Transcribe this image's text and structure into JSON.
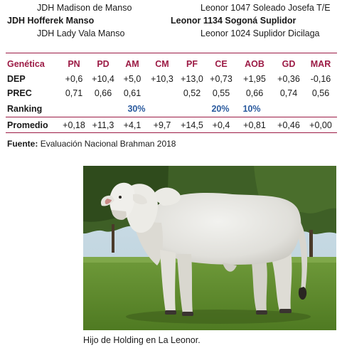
{
  "pedigree": {
    "rows": [
      {
        "left": "JDH Madison de Manso",
        "right": "Leonor 1047 Soleado Josefa T/E"
      },
      {
        "left": "JDH Hofferek Manso",
        "right": "Leonor 1134 Sogoná Suplidor"
      },
      {
        "left": "JDH Lady Vala Manso",
        "right": "Leonor 1024 Suplidor Dicilaga"
      }
    ]
  },
  "table": {
    "header_label": "Genética",
    "columns": [
      "PN",
      "PD",
      "AM",
      "CM",
      "PF",
      "CE",
      "AOB",
      "GD",
      "MAR"
    ],
    "rows": {
      "dep": {
        "label": "DEP",
        "values": [
          "+0,6",
          "+10,4",
          "+5,0",
          "+10,3",
          "+13,0",
          "+0,73",
          "+1,95",
          "+0,36",
          "-0,16"
        ]
      },
      "prec": {
        "label": "PREC",
        "values": [
          "0,71",
          "0,66",
          "0,61",
          "",
          "0,52",
          "0,55",
          "0,66",
          "0,74",
          "0,56"
        ]
      },
      "ranking": {
        "label": "Ranking",
        "values": [
          "",
          "",
          "30%",
          "",
          "",
          "20%",
          "10%",
          "",
          ""
        ]
      },
      "promedio": {
        "label": "Promedio",
        "values": [
          "+0,18",
          "+11,3",
          "+4,1",
          "+9,7",
          "+14,5",
          "+0,4",
          "+0,81",
          "+0,46",
          "+0,00"
        ]
      }
    }
  },
  "source": {
    "label": "Fuente:",
    "text": "Evaluación Nacional Brahman 2018"
  },
  "caption": "Hijo de Holding en La Leonor.",
  "colors": {
    "accent": "#9c1b45",
    "ranking": "#2a5a9e"
  }
}
